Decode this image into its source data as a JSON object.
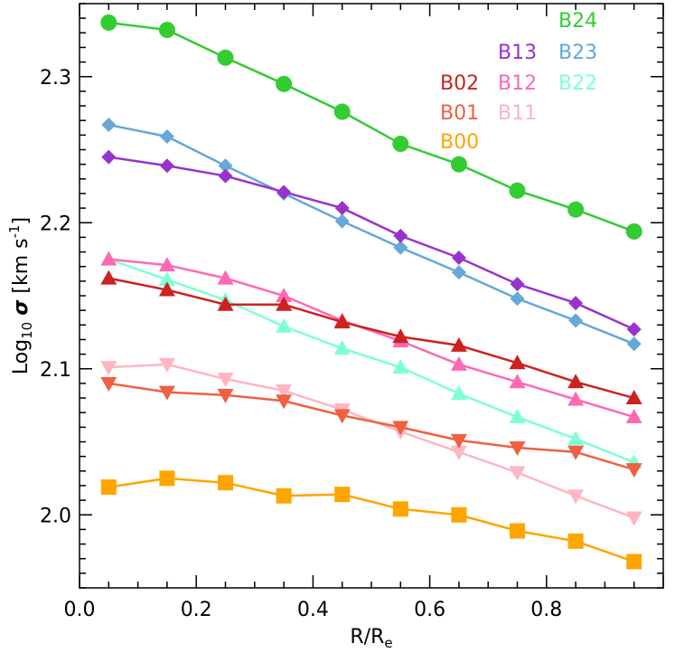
{
  "chart_data": {
    "type": "line",
    "xlabel": {
      "main": "R/R",
      "sub": "e"
    },
    "ylabel": {
      "prefix": "Log",
      "prefix_sub": "10",
      "symbol": "σ",
      "unit": "[km s",
      "unit_sup": "-1",
      "unit_close": "]"
    },
    "xlim": [
      0.0,
      1.0
    ],
    "ylim": [
      1.95,
      2.35
    ],
    "xticks": [
      0.0,
      0.2,
      0.4,
      0.6,
      0.8
    ],
    "xtick_labels": [
      "0.0",
      "0.2",
      "0.4",
      "0.6",
      "0.8"
    ],
    "yticks": [
      2.0,
      2.1,
      2.2,
      2.3
    ],
    "ytick_labels": [
      "2.0",
      "2.1",
      "2.2",
      "2.3"
    ],
    "grid": false,
    "legend_placement": "top-right",
    "x": [
      0.05,
      0.15,
      0.25,
      0.35,
      0.45,
      0.55,
      0.65,
      0.75,
      0.85,
      0.95
    ],
    "series": [
      {
        "name": "B24",
        "color": "#33cc33",
        "marker": "circle",
        "values": [
          2.337,
          2.332,
          2.313,
          2.295,
          2.276,
          2.254,
          2.24,
          2.222,
          2.209,
          2.194
        ]
      },
      {
        "name": "B23",
        "color": "#66a8d8",
        "marker": "diamond",
        "values": [
          2.267,
          2.259,
          2.239,
          2.22,
          2.201,
          2.183,
          2.166,
          2.148,
          2.133,
          2.117
        ]
      },
      {
        "name": "B13",
        "color": "#9933cc",
        "marker": "diamond",
        "values": [
          2.245,
          2.239,
          2.232,
          2.221,
          2.21,
          2.191,
          2.176,
          2.158,
          2.145,
          2.127
        ]
      },
      {
        "name": "B22",
        "color": "#7fffd4",
        "marker": "triangle-up",
        "values": [
          2.175,
          2.161,
          2.147,
          2.129,
          2.114,
          2.101,
          2.083,
          2.067,
          2.052,
          2.036
        ]
      },
      {
        "name": "B12",
        "color": "#ff69b4",
        "marker": "triangle-up",
        "values": [
          2.175,
          2.171,
          2.162,
          2.15,
          2.133,
          2.119,
          2.103,
          2.091,
          2.079,
          2.067
        ]
      },
      {
        "name": "B02",
        "color": "#cc2222",
        "marker": "triangle-up",
        "values": [
          2.162,
          2.154,
          2.144,
          2.144,
          2.132,
          2.122,
          2.116,
          2.104,
          2.091,
          2.08
        ]
      },
      {
        "name": "B11",
        "color": "#ffb6c1",
        "marker": "triangle-down",
        "values": [
          2.101,
          2.103,
          2.093,
          2.085,
          2.072,
          2.057,
          2.043,
          2.029,
          2.013,
          1.998
        ]
      },
      {
        "name": "B01",
        "color": "#f06040",
        "marker": "triangle-down",
        "values": [
          2.09,
          2.084,
          2.082,
          2.078,
          2.068,
          2.06,
          2.051,
          2.046,
          2.043,
          2.031
        ]
      },
      {
        "name": "B00",
        "color": "#ffa500",
        "marker": "square",
        "values": [
          2.019,
          2.025,
          2.022,
          2.013,
          2.014,
          2.004,
          2.0,
          1.989,
          1.982,
          1.968
        ]
      }
    ],
    "legend_layout": [
      {
        "name": "B24",
        "col": 2,
        "row": 0
      },
      {
        "name": "B13",
        "col": 1,
        "row": 1
      },
      {
        "name": "B23",
        "col": 2,
        "row": 1
      },
      {
        "name": "B02",
        "col": 0,
        "row": 2
      },
      {
        "name": "B12",
        "col": 1,
        "row": 2
      },
      {
        "name": "B22",
        "col": 2,
        "row": 2
      },
      {
        "name": "B01",
        "col": 0,
        "row": 3
      },
      {
        "name": "B11",
        "col": 1,
        "row": 3
      },
      {
        "name": "B00",
        "col": 0,
        "row": 4
      }
    ]
  }
}
